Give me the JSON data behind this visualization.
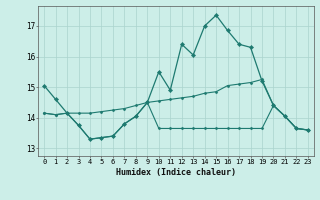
{
  "xlabel": "Humidex (Indice chaleur)",
  "bg_color": "#cceee8",
  "grid_color": "#aad4ce",
  "line_color": "#1e7a70",
  "xlim": [
    -0.5,
    23.5
  ],
  "ylim": [
    12.75,
    17.65
  ],
  "yticks": [
    13,
    14,
    15,
    16,
    17
  ],
  "xticks": [
    0,
    1,
    2,
    3,
    4,
    5,
    6,
    7,
    8,
    9,
    10,
    11,
    12,
    13,
    14,
    15,
    16,
    17,
    18,
    19,
    20,
    21,
    22,
    23
  ],
  "line1": [
    15.05,
    14.6,
    14.15,
    13.75,
    13.3,
    13.35,
    13.4,
    13.8,
    14.05,
    14.5,
    15.5,
    14.9,
    16.4,
    16.05,
    17.0,
    17.35,
    16.85,
    16.4,
    16.3,
    15.2,
    14.4,
    14.05,
    13.65,
    13.6
  ],
  "line2": [
    14.15,
    14.1,
    14.15,
    14.15,
    14.15,
    14.2,
    14.25,
    14.3,
    14.4,
    14.5,
    14.55,
    14.6,
    14.65,
    14.7,
    14.8,
    14.85,
    15.05,
    15.1,
    15.15,
    15.25,
    14.4,
    14.05,
    13.65,
    13.6
  ],
  "line3": [
    14.15,
    14.1,
    14.15,
    13.75,
    13.3,
    13.35,
    13.4,
    13.8,
    14.05,
    14.5,
    13.65,
    13.65,
    13.65,
    13.65,
    13.65,
    13.65,
    13.65,
    13.65,
    13.65,
    13.65,
    14.4,
    14.05,
    13.65,
    13.6
  ]
}
